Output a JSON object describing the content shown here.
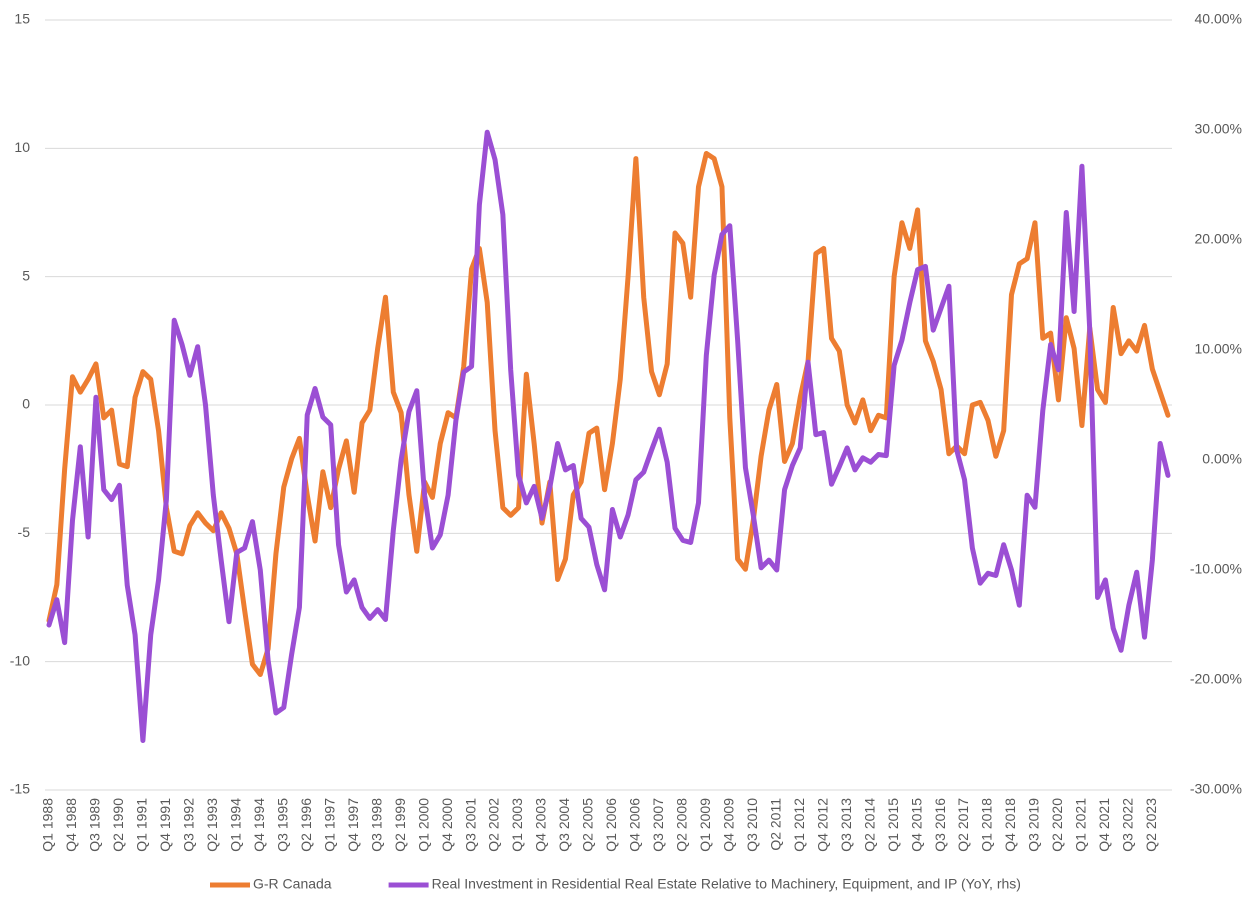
{
  "chart_data": {
    "type": "line",
    "categories": [
      "Q1 1988",
      null,
      null,
      "Q4 1988",
      null,
      null,
      "Q3 1989",
      null,
      null,
      "Q2 1990",
      null,
      null,
      "Q1 1991",
      null,
      null,
      "Q4 1991",
      null,
      null,
      "Q3 1992",
      null,
      null,
      "Q2 1993",
      null,
      null,
      "Q1 1994",
      null,
      null,
      "Q4 1994",
      null,
      null,
      "Q3 1995",
      null,
      null,
      "Q2 1996",
      null,
      null,
      "Q1 1997",
      null,
      null,
      "Q4 1997",
      null,
      null,
      "Q3 1998",
      null,
      null,
      "Q2 1999",
      null,
      null,
      "Q1 2000",
      null,
      null,
      "Q4 2000",
      null,
      null,
      "Q3 2001",
      null,
      null,
      "Q2 2002",
      null,
      null,
      "Q1 2003",
      null,
      null,
      "Q4 2003",
      null,
      null,
      "Q3 2004",
      null,
      null,
      "Q2 2005",
      null,
      null,
      "Q1 2006",
      null,
      null,
      "Q4 2006",
      null,
      null,
      "Q3 2007",
      null,
      null,
      "Q2 2008",
      null,
      null,
      "Q1 2009",
      null,
      null,
      "Q4 2009",
      null,
      null,
      "Q3 2010",
      null,
      null,
      "Q2 2011",
      null,
      null,
      "Q1 2012",
      null,
      null,
      "Q4 2012",
      null,
      null,
      "Q3 2013",
      null,
      null,
      "Q2 2014",
      null,
      null,
      "Q1 2015",
      null,
      null,
      "Q4 2015",
      null,
      null,
      "Q3 2016",
      null,
      null,
      "Q2 2017",
      null,
      null,
      "Q1 2018",
      null,
      null,
      "Q4 2018",
      null,
      null,
      "Q3 2019",
      null,
      null,
      "Q2 2020",
      null,
      null,
      "Q1 2021",
      null,
      null,
      "Q4 2021",
      null,
      null,
      "Q3 2022",
      null,
      null,
      "Q2 2023",
      null,
      null
    ],
    "series": [
      {
        "name": "G-R Canada",
        "color": "#ed7d31",
        "axis": "y",
        "values": [
          -8.4,
          -7,
          -2.5,
          1.1,
          0.5,
          1.0,
          1.6,
          -0.5,
          -0.2,
          -2.3,
          -2.4,
          0.3,
          1.3,
          1.0,
          -1,
          -4,
          -5.7,
          -5.8,
          -4.7,
          -4.2,
          -4.6,
          -4.9,
          -4.2,
          -4.8,
          -5.8,
          -8,
          -10.1,
          -10.5,
          -9.5,
          -5.8,
          -3.2,
          -2.1,
          -1.3,
          -3.5,
          -5.3,
          -2.6,
          -4,
          -2.5,
          -1.4,
          -3.4,
          -0.7,
          -0.2,
          2.2,
          4.2,
          0.5,
          -0.3,
          -3.5,
          -5.7,
          -3,
          -3.6,
          -1.5,
          -0.3,
          -0.5,
          1.5,
          5.3,
          6.1,
          4,
          -1,
          -4,
          -4.3,
          -4,
          1.2,
          -1.5,
          -4.6,
          -3,
          -6.8,
          -6,
          -3.5,
          -3,
          -1.1,
          -0.9,
          -3.3,
          -1.5,
          1,
          5,
          9.6,
          4.2,
          1.3,
          0.4,
          1.6,
          6.7,
          6.3,
          4.2,
          8.5,
          9.8,
          9.6,
          8.5,
          -0.5,
          -6,
          -6.4,
          -4.5,
          -2,
          -0.2,
          0.8,
          -2.2,
          -1.5,
          0.3,
          1.7,
          5.9,
          6.1,
          2.6,
          2.1,
          0,
          -0.7,
          0.2,
          -1,
          -0.4,
          -0.5,
          5,
          7.1,
          6.1,
          7.6,
          2.5,
          1.7,
          0.6,
          -1.9,
          -1.6,
          -1.9,
          0,
          0.1,
          -0.6,
          -2,
          -1,
          4.3,
          5.5,
          5.7,
          7.1,
          2.6,
          2.8,
          0.2,
          3.4,
          2.2,
          -0.8,
          3,
          0.6,
          0.1,
          3.8,
          2,
          2.5,
          2.1,
          3.1,
          1.4,
          0.5,
          -0.4
        ]
      },
      {
        "name": "Real Investment in Residential Real Estate Relative to Machinery, Equipment, and IP (YoY, rhs)",
        "color": "#9b4fd4",
        "axis": "y2",
        "values": [
          -15,
          -12.7,
          -16.6,
          -5.5,
          1.2,
          -7,
          5.7,
          -2.7,
          -3.6,
          -2.3,
          -11.4,
          -15.9,
          -25.5,
          -15.9,
          -10.9,
          -3.6,
          12.7,
          10.5,
          7.7,
          10.3,
          5,
          -3.2,
          -9.1,
          -14.7,
          -8.4,
          -8,
          -5.6,
          -10,
          -18.2,
          -23,
          -22.5,
          -17.7,
          -13.4,
          4.1,
          6.5,
          3.9,
          3.2,
          -7.7,
          -12,
          -10.9,
          -13.4,
          -14.4,
          -13.6,
          -14.5,
          -6.4,
          0,
          4.4,
          6.3,
          -3.2,
          -8,
          -6.8,
          -3.2,
          3.6,
          8,
          8.5,
          23.2,
          29.8,
          27.3,
          22.3,
          8.2,
          -1.4,
          -3.9,
          -2.4,
          -5.3,
          -2.5,
          1.5,
          -0.9,
          -0.5,
          -5.3,
          -6.1,
          -9.5,
          -11.8,
          -4.5,
          -7,
          -5,
          -1.8,
          -1.1,
          0.9,
          2.8,
          -0.2,
          -6.2,
          -7.3,
          -7.5,
          -3.9,
          9.5,
          16.8,
          20.5,
          21.3,
          10.9,
          -0.7,
          -5,
          -9.8,
          -9.1,
          -10,
          -2.7,
          -0.5,
          1.1,
          8.9,
          2.3,
          2.5,
          -2.2,
          -0.6,
          1.1,
          -0.9,
          0.2,
          -0.2,
          0.5,
          0.4,
          8.6,
          10.9,
          14.3,
          17.3,
          17.6,
          11.8,
          13.8,
          15.8,
          0.9,
          -1.8,
          -8,
          -11.2,
          -10.3,
          -10.5,
          -7.7,
          -10,
          -13.2,
          -3.2,
          -4.3,
          4.5,
          10.5,
          8.2,
          22.5,
          13.5,
          26.7,
          11.8,
          -12.5,
          -10.9,
          -15.3,
          -17.3,
          -13.2,
          -10.2,
          -16.1,
          -9.1,
          1.5,
          -1.4
        ]
      }
    ],
    "ylim": [
      -15,
      15
    ],
    "yticks": [
      -15,
      -10,
      -5,
      0,
      5,
      10,
      15
    ],
    "y2lim": [
      -30,
      40
    ],
    "y2ticks": [
      {
        "value": -30,
        "label": "-30.00%"
      },
      {
        "value": -20,
        "label": "-20.00%"
      },
      {
        "value": -10,
        "label": "-10.00%"
      },
      {
        "value": 0,
        "label": "0.00%"
      },
      {
        "value": 10,
        "label": "10.00%"
      },
      {
        "value": 20,
        "label": "20.00%"
      },
      {
        "value": 30,
        "label": "30.00%"
      },
      {
        "value": 40,
        "label": "40.00%"
      }
    ],
    "grid": true,
    "legend": "bottom"
  }
}
